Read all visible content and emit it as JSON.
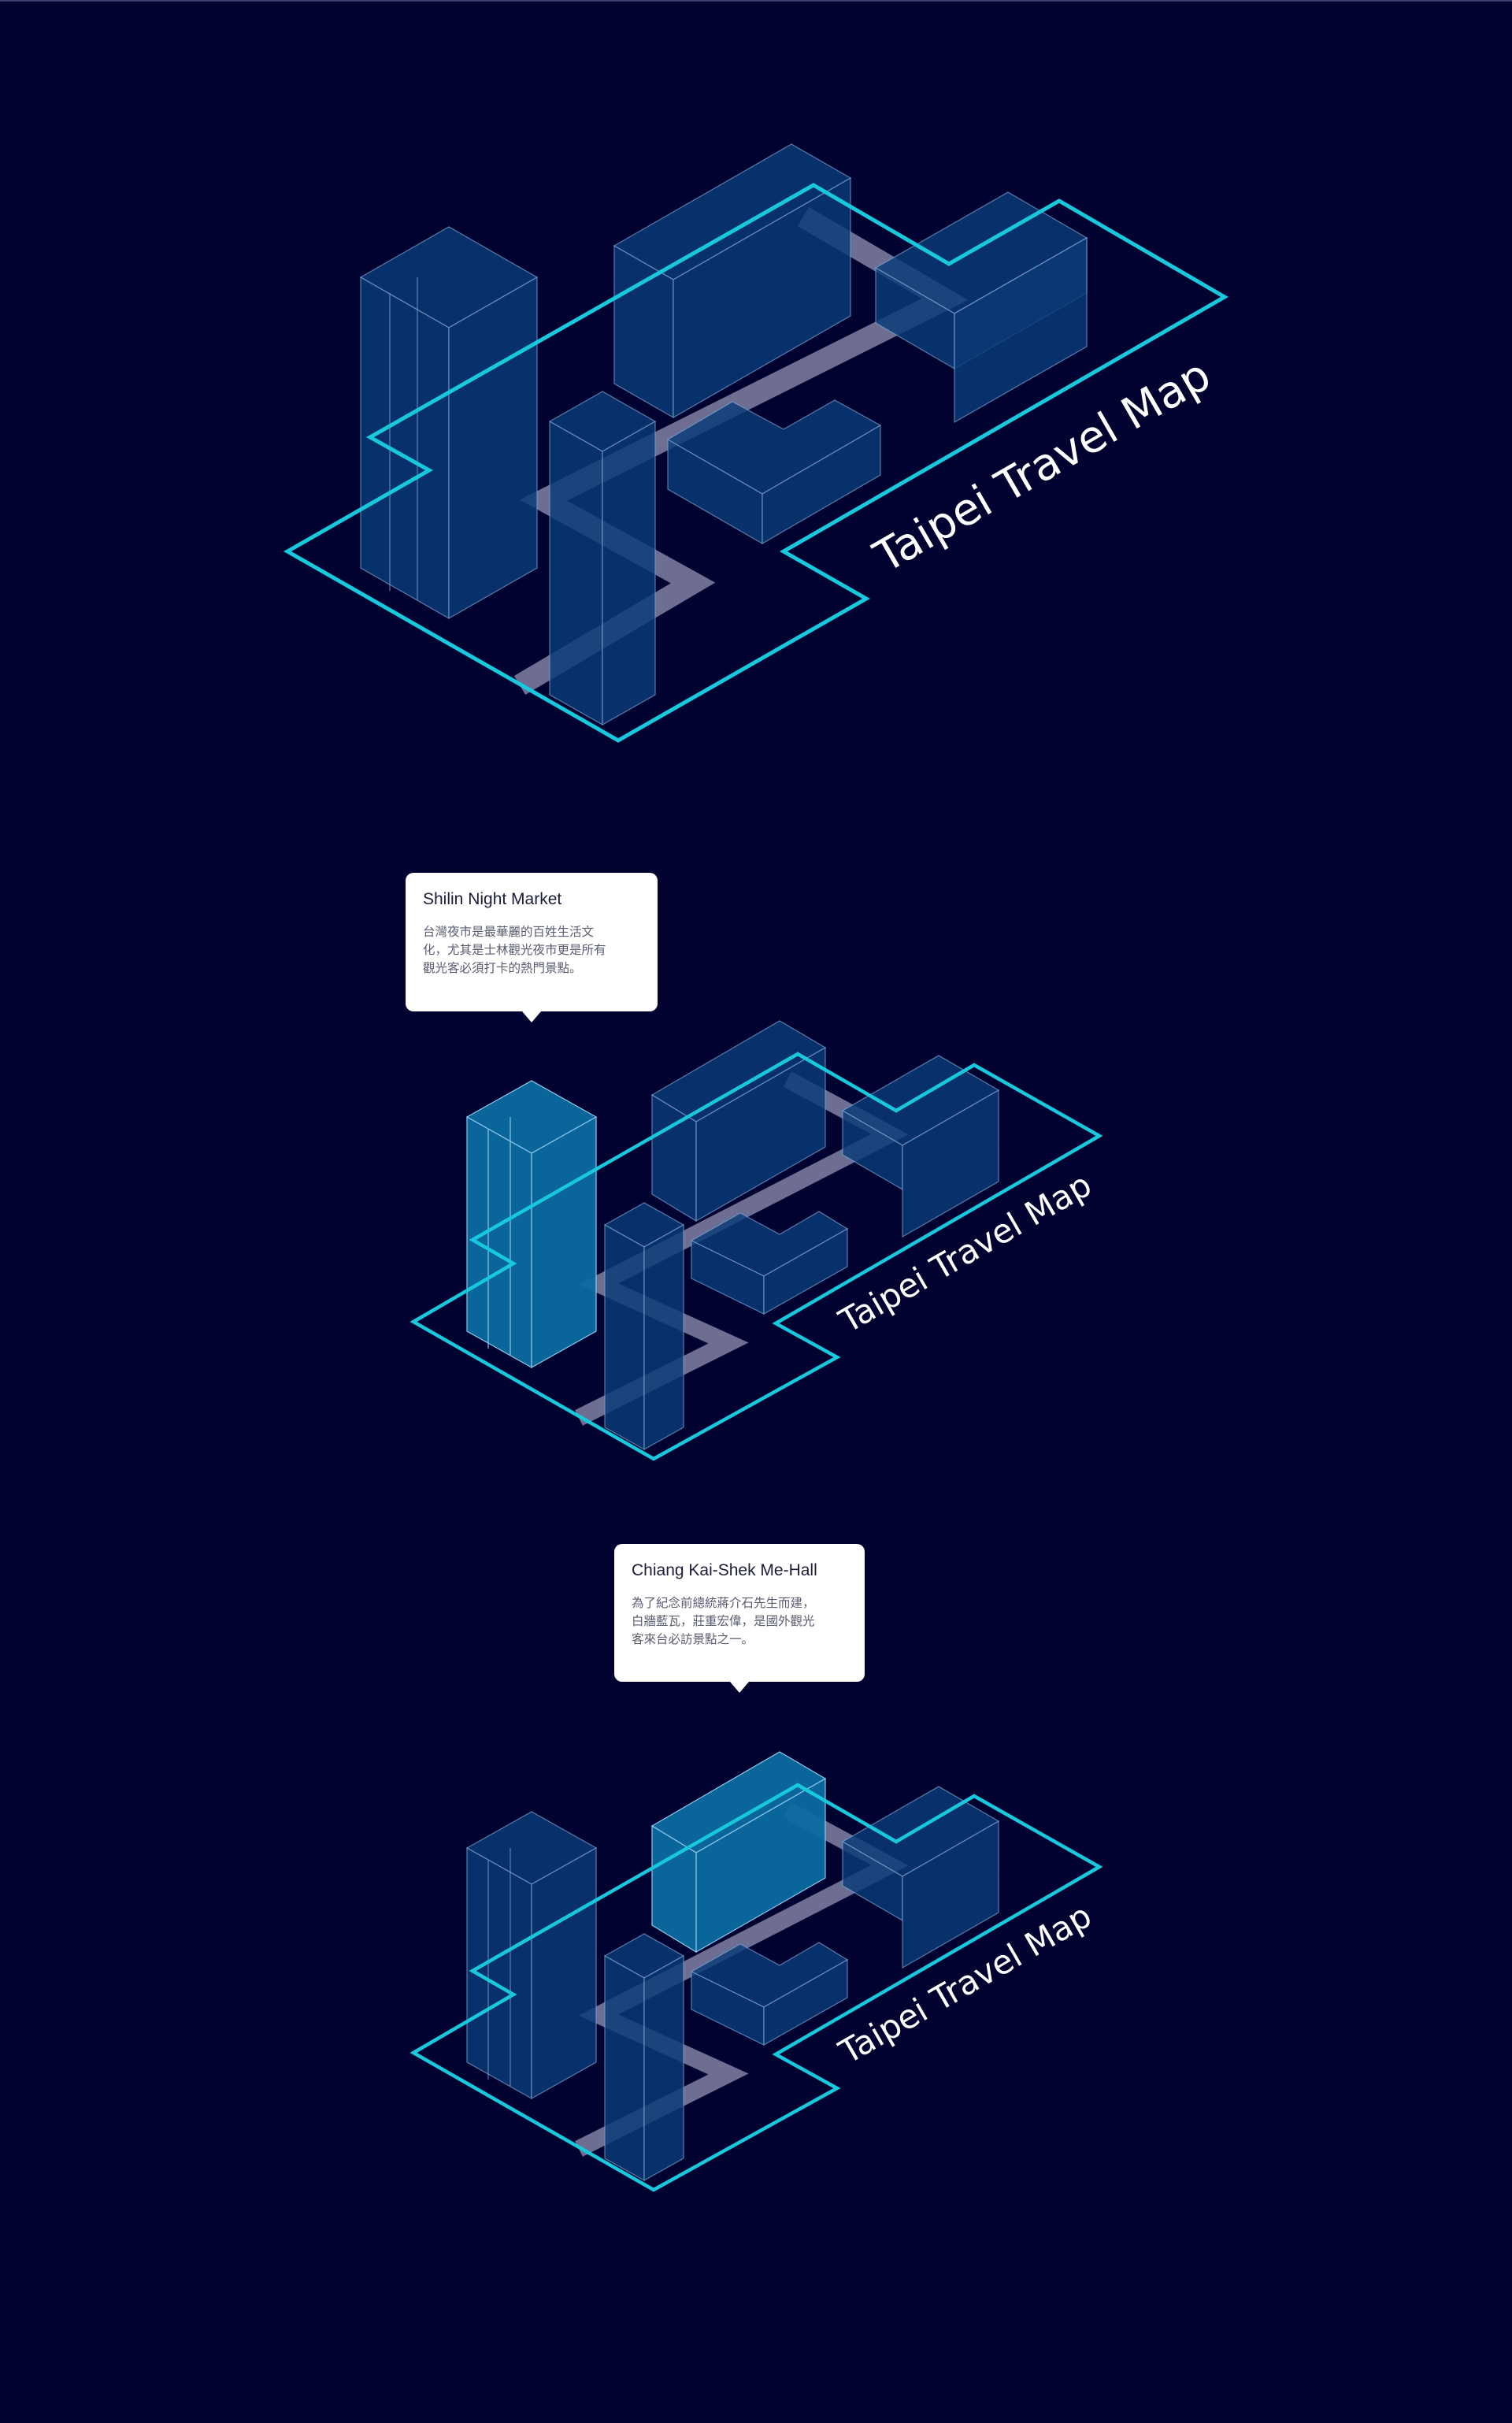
{
  "map": {
    "title": "Taipei Travel Map",
    "colors": {
      "background": "#010230",
      "outline": "#18c8dc",
      "building": "#0a3a78",
      "building_highlight": "#0a6aa0",
      "path": "#c8c8e6"
    }
  },
  "scenes": [
    {
      "id": "overview",
      "highlight": null,
      "tooltip": null
    },
    {
      "id": "shilin",
      "highlight": "tower",
      "tooltip": {
        "title": "Shilin Night Market",
        "lines": [
          "台灣夜市是最華麗的百姓生活文",
          "化，尤其是士林觀光夜市更是所有",
          "觀光客必須打卡的熱門景點。"
        ]
      }
    },
    {
      "id": "cks",
      "highlight": "hall",
      "tooltip": {
        "title": "Chiang Kai-Shek Me-Hall",
        "lines": [
          "為了紀念前總統蔣介石先生而建，",
          "白牆藍瓦，莊重宏偉，是國外觀光",
          "客來台必訪景點之一。"
        ]
      }
    }
  ]
}
